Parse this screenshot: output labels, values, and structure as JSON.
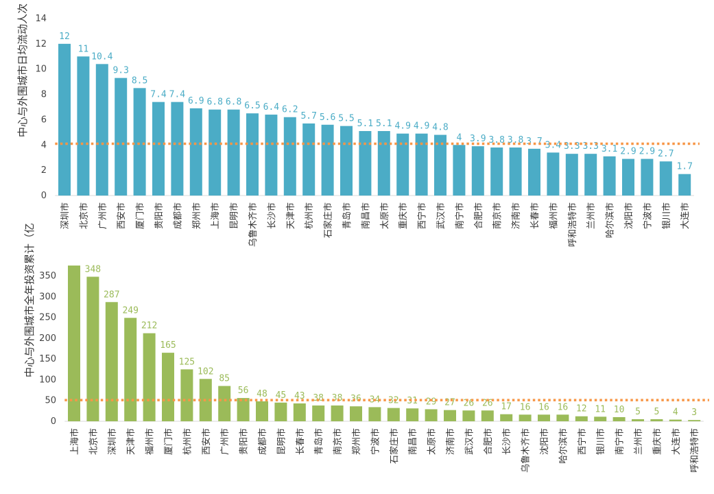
{
  "chart_data": [
    {
      "type": "bar",
      "ylabel": "中心与外围城市日均流动人次（万人次）",
      "ylim": [
        0,
        14
      ],
      "yticks": [
        0,
        2,
        4,
        6,
        8,
        10,
        12,
        14
      ],
      "color": "#4bacc6",
      "avg_line": 4.1,
      "avg_color": "#f79646",
      "categories": [
        "深圳市",
        "北京市",
        "广州市",
        "西安市",
        "厦门市",
        "贵阳市",
        "成都市",
        "郑州市",
        "上海市",
        "昆明市",
        "乌鲁木齐市",
        "长沙市",
        "天津市",
        "杭州市",
        "石家庄市",
        "青岛市",
        "南昌市",
        "太原市",
        "重庆市",
        "西宁市",
        "武汉市",
        "南宁市",
        "合肥市",
        "南京市",
        "济南市",
        "长春市",
        "福州市",
        "呼和浩特市",
        "兰州市",
        "哈尔滨市",
        "沈阳市",
        "宁波市",
        "银川市",
        "大连市"
      ],
      "values": [
        12,
        11,
        10.4,
        9.3,
        8.5,
        7.4,
        7.4,
        6.9,
        6.8,
        6.8,
        6.5,
        6.4,
        6.2,
        5.7,
        5.6,
        5.5,
        5.1,
        5.1,
        4.9,
        4.9,
        4.8,
        4,
        3.9,
        3.8,
        3.8,
        3.7,
        3.4,
        3.3,
        3.3,
        3.1,
        2.9,
        2.9,
        2.7,
        1.7
      ]
    },
    {
      "type": "bar",
      "ylabel": "中心与外围城市全年投资累计（亿",
      "ylim": [
        0,
        375
      ],
      "yticks": [
        0,
        50,
        100,
        150,
        200,
        250,
        300,
        350
      ],
      "color": "#9bbb59",
      "avg_line": 51,
      "avg_color": "#f79646",
      "categories": [
        "上海市",
        "北京市",
        "深圳市",
        "天津市",
        "福州市",
        "厦门市",
        "杭州市",
        "西安市",
        "广州市",
        "贵阳市",
        "成都市",
        "昆明市",
        "长春市",
        "青岛市",
        "南京市",
        "郑州市",
        "宁波市",
        "石家庄市",
        "南昌市",
        "太原市",
        "济南市",
        "武汉市",
        "合肥市",
        "长沙市",
        "乌鲁木齐市",
        "沈阳市",
        "哈尔滨市",
        "西宁市",
        "银川市",
        "南宁市",
        "兰州市",
        "重庆市",
        "大连市",
        "呼和浩特市"
      ],
      "values": [
        null,
        348,
        287,
        249,
        212,
        165,
        125,
        102,
        85,
        56,
        48,
        45,
        43,
        38,
        38,
        36,
        34,
        32,
        31,
        29,
        27,
        26,
        26,
        17,
        16,
        16,
        16,
        12,
        11,
        10,
        5,
        5,
        4,
        3
      ]
    }
  ]
}
